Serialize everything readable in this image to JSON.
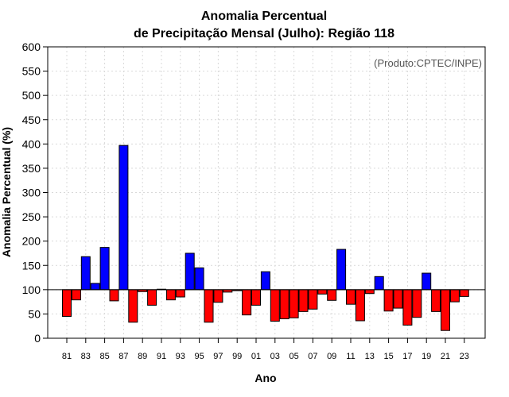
{
  "chart_data": {
    "type": "bar",
    "title_line1": "Anomalia Percentual",
    "title_line2": "de Precipitação Mensal (Julho): Região 118",
    "xlabel": "Ano",
    "ylabel": "Anomalia Percentual (%)",
    "credit": "(Produto:CPTEC/INPE)",
    "baseline": 100,
    "ylim": [
      0,
      600
    ],
    "yticks": [
      0,
      50,
      100,
      150,
      200,
      250,
      300,
      350,
      400,
      450,
      500,
      550,
      600
    ],
    "grid": true,
    "categories": [
      "81",
      "82",
      "83",
      "84",
      "85",
      "86",
      "87",
      "88",
      "89",
      "90",
      "91",
      "92",
      "93",
      "94",
      "95",
      "96",
      "97",
      "98",
      "99",
      "00",
      "01",
      "02",
      "03",
      "04",
      "05",
      "06",
      "07",
      "08",
      "09",
      "10",
      "11",
      "12",
      "13",
      "14",
      "15",
      "16",
      "17",
      "18",
      "19",
      "20",
      "21",
      "22",
      "23"
    ],
    "xtick_labels": [
      "81",
      "83",
      "85",
      "87",
      "89",
      "91",
      "93",
      "95",
      "97",
      "99",
      "01",
      "03",
      "05",
      "07",
      "09",
      "11",
      "13",
      "15",
      "17",
      "19",
      "21",
      "23"
    ],
    "values": [
      45,
      79,
      168,
      113,
      187,
      77,
      397,
      33,
      96,
      68,
      101,
      79,
      85,
      175,
      145,
      33,
      74,
      95,
      98,
      48,
      68,
      137,
      35,
      40,
      42,
      55,
      60,
      91,
      78,
      183,
      70,
      36,
      92,
      127,
      56,
      62,
      27,
      43,
      134,
      55,
      16,
      75,
      86
    ],
    "colors": {
      "above": "#0000ff",
      "below": "#ff0000",
      "grid": "#d9d9d9",
      "axis": "#000000"
    }
  }
}
